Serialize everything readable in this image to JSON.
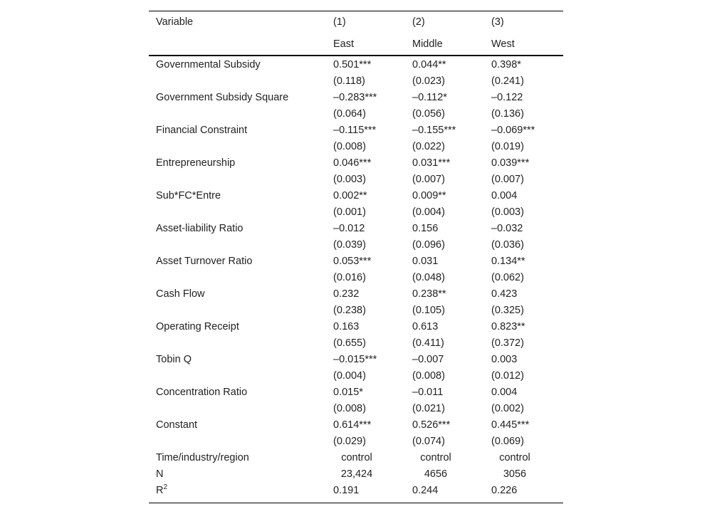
{
  "header": {
    "columns": [
      "Variable",
      "(1)",
      "(2)",
      "(3)"
    ],
    "regions": [
      "East",
      "Middle",
      "West"
    ]
  },
  "rows": [
    {
      "variable": "Governmental Subsidy",
      "coef": [
        "0.501***",
        "0.044**",
        "0.398*"
      ],
      "se": [
        "(0.118)",
        "(0.023)",
        "(0.241)"
      ]
    },
    {
      "variable": "Government Subsidy Square",
      "coef": [
        "–0.283***",
        "–0.112*",
        "–0.122"
      ],
      "se": [
        "(0.064)",
        "(0.056)",
        "(0.136)"
      ]
    },
    {
      "variable": "Financial Constraint",
      "coef": [
        "–0.115***",
        "–0.155***",
        "–0.069***"
      ],
      "se": [
        "(0.008)",
        "(0.022)",
        "(0.019)"
      ]
    },
    {
      "variable": "Entrepreneurship",
      "coef": [
        "0.046***",
        "0.031***",
        "0.039***"
      ],
      "se": [
        "(0.003)",
        "(0.007)",
        "(0.007)"
      ]
    },
    {
      "variable": "Sub*FC*Entre",
      "coef": [
        "0.002**",
        "0.009**",
        "0.004"
      ],
      "se": [
        "(0.001)",
        "(0.004)",
        "(0.003)"
      ]
    },
    {
      "variable": "Asset-liability Ratio",
      "coef": [
        "–0.012",
        "0.156",
        "–0.032"
      ],
      "se": [
        "(0.039)",
        "(0.096)",
        "(0.036)"
      ]
    },
    {
      "variable": "Asset Turnover Ratio",
      "coef": [
        "0.053***",
        "0.031",
        "0.134**"
      ],
      "se": [
        "(0.016)",
        "(0.048)",
        "(0.062)"
      ]
    },
    {
      "variable": "Cash Flow",
      "coef": [
        "0.232",
        "0.238**",
        "0.423"
      ],
      "se": [
        "(0.238)",
        "(0.105)",
        "(0.325)"
      ]
    },
    {
      "variable": "Operating Receipt",
      "coef": [
        "0.163",
        "0.613",
        "0.823**"
      ],
      "se": [
        "(0.655)",
        "(0.411)",
        "(0.372)"
      ]
    },
    {
      "variable": "Tobin Q",
      "coef": [
        "–0.015***",
        "–0.007",
        "0.003"
      ],
      "se": [
        "(0.004)",
        "(0.008)",
        "(0.012)"
      ]
    },
    {
      "variable": "Concentration Ratio",
      "coef": [
        "0.015*",
        "–0.011",
        "0.004"
      ],
      "se": [
        "(0.008)",
        "(0.021)",
        "(0.002)"
      ]
    },
    {
      "variable": "Constant",
      "coef": [
        "0.614***",
        "0.526***",
        "0.445***"
      ],
      "se": [
        "(0.029)",
        "(0.074)",
        "(0.069)"
      ]
    }
  ],
  "footer": [
    {
      "label": "Time/industry/region",
      "values": [
        "control",
        "control",
        "control"
      ]
    },
    {
      "label": "N",
      "values": [
        "23,424",
        "4656",
        "3056"
      ]
    },
    {
      "label": "R",
      "label_sup": "2",
      "values": [
        "0.191",
        "0.244",
        "0.226"
      ]
    }
  ]
}
